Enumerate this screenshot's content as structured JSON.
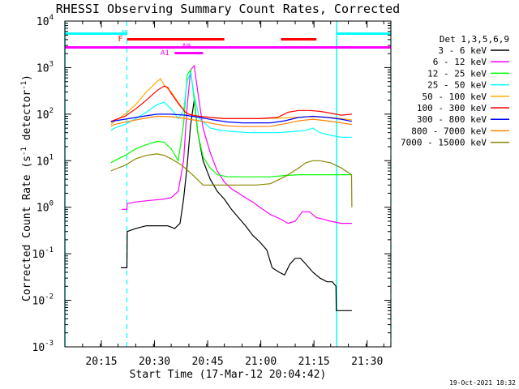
{
  "chart_data": {
    "type": "line",
    "title": "RHESSI Observing Summary Count Rates, Corrected",
    "xlabel": "Start Time (17-Mar-12 20:04:42)",
    "ylabel_main": "Corrected Count Rate (s",
    "ylabel_sup1": "-1",
    "ylabel_mid": " detector",
    "ylabel_sup2": "-1",
    "ylabel_end": ")",
    "x_unit": "minutes after 20:04:42",
    "xlim": [
      0,
      92
    ],
    "ylim": [
      0.001,
      10000
    ],
    "yscale": "log",
    "x_ticks": [
      {
        "x": 10.3,
        "label": "20:15"
      },
      {
        "x": 25.3,
        "label": "20:30"
      },
      {
        "x": 40.3,
        "label": "20:45"
      },
      {
        "x": 55.3,
        "label": "21:00"
      },
      {
        "x": 70.3,
        "label": "21:15"
      },
      {
        "x": 85.3,
        "label": "21:30"
      }
    ],
    "y_ticks": [
      {
        "v": 0.001,
        "base": "10",
        "exp": "-3"
      },
      {
        "v": 0.01,
        "base": "10",
        "exp": "-2"
      },
      {
        "v": 0.1,
        "base": "10",
        "exp": "-1"
      },
      {
        "v": 1,
        "base": "10",
        "exp": "0"
      },
      {
        "v": 10,
        "base": "10",
        "exp": "1"
      },
      {
        "v": 100,
        "base": "10",
        "exp": "2"
      },
      {
        "v": 1000,
        "base": "10",
        "exp": "3"
      },
      {
        "v": 10000,
        "base": "10",
        "exp": "4"
      }
    ],
    "legend_title": "Det 1,3,5,6,9",
    "legend_position": "right",
    "series": [
      {
        "name": "3 - 6 keV",
        "color": "#000000",
        "x": [
          15.8,
          17.5,
          17.6,
          20,
          23,
          26,
          29,
          31,
          32.5,
          33.5,
          34.5,
          35.5,
          36.5,
          37.5,
          39,
          41,
          43,
          45,
          47,
          49,
          51,
          53,
          55,
          57,
          58.5,
          60.5,
          62,
          63.5,
          65,
          66.5,
          68,
          70,
          72,
          74,
          75.5,
          76.5,
          76.6,
          77,
          81
        ],
        "y": [
          0.05,
          0.05,
          0.3,
          0.35,
          0.4,
          0.4,
          0.4,
          0.35,
          0.45,
          1.5,
          8,
          60,
          200,
          40,
          10,
          4,
          2.2,
          1.5,
          0.9,
          0.6,
          0.4,
          0.25,
          0.18,
          0.12,
          0.05,
          0.04,
          0.035,
          0.06,
          0.08,
          0.08,
          0.06,
          0.04,
          0.03,
          0.025,
          0.025,
          0.02,
          0.006,
          0.006,
          0.006
        ]
      },
      {
        "name": "6 - 12 keV",
        "color": "#ff00ff",
        "x": [
          16,
          17.5,
          17.6,
          20,
          24,
          28,
          30,
          32,
          33.5,
          34.5,
          35.5,
          36.5,
          37.5,
          39,
          41,
          43,
          45,
          47,
          49,
          51,
          53,
          55,
          58,
          61,
          63,
          65,
          67,
          69,
          71,
          73,
          75,
          78,
          81
        ],
        "y": [
          0.9,
          0.9,
          1.2,
          1.3,
          1.4,
          1.5,
          1.6,
          2.2,
          10,
          150,
          900,
          1100,
          300,
          50,
          15,
          6,
          3.5,
          2.5,
          2,
          1.6,
          1.3,
          1.0,
          0.7,
          0.55,
          0.45,
          0.5,
          0.8,
          0.8,
          0.6,
          0.55,
          0.5,
          0.45,
          0.45
        ]
      },
      {
        "name": "12 - 25 keV",
        "color": "#00ff00",
        "x": [
          13,
          14,
          17,
          20,
          23,
          26,
          28,
          30,
          32,
          33.5,
          34.5,
          35.5,
          36.5,
          37.5,
          39,
          41,
          43,
          46,
          50,
          54,
          58,
          62,
          66,
          69,
          72,
          75,
          78,
          81
        ],
        "y": [
          9,
          10,
          13,
          18,
          22,
          26,
          25,
          18,
          10,
          60,
          700,
          900,
          200,
          40,
          12,
          7,
          5,
          4.5,
          4.5,
          4.5,
          4.5,
          4.8,
          5,
          5,
          5,
          5,
          5,
          5
        ]
      },
      {
        "name": "25 - 50 keV",
        "color": "#00ffff",
        "x": [
          13,
          14,
          17,
          20,
          23,
          26,
          28,
          30,
          32,
          33.5,
          34.5,
          35.5,
          36.5,
          38,
          41,
          44,
          48,
          52,
          56,
          60,
          64,
          68,
          70,
          72,
          75,
          78,
          81
        ],
        "y": [
          45,
          50,
          60,
          80,
          110,
          160,
          180,
          130,
          80,
          120,
          500,
          800,
          250,
          80,
          50,
          45,
          42,
          40,
          40,
          40,
          42,
          45,
          50,
          40,
          35,
          32,
          32
        ]
      },
      {
        "name": "50 - 100 keV",
        "color": "#ffaa00",
        "x": [
          13,
          14,
          17,
          20,
          23,
          26,
          27,
          28,
          30,
          32,
          34,
          35,
          36,
          38,
          41,
          45,
          50,
          55,
          60,
          65,
          70,
          75,
          78,
          81
        ],
        "y": [
          60,
          70,
          100,
          160,
          300,
          500,
          580,
          420,
          300,
          180,
          110,
          100,
          95,
          90,
          85,
          80,
          80,
          80,
          82,
          85,
          88,
          85,
          80,
          75
        ]
      },
      {
        "name": "100 - 300 keV",
        "color": "#ff0000",
        "x": [
          13,
          14,
          17,
          20,
          23,
          26,
          28,
          29,
          30,
          32,
          34,
          35,
          36,
          38,
          41,
          45,
          50,
          55,
          60,
          63,
          66,
          69,
          72,
          75,
          78,
          81
        ],
        "y": [
          70,
          75,
          90,
          130,
          200,
          320,
          400,
          380,
          280,
          170,
          110,
          100,
          95,
          90,
          85,
          80,
          80,
          80,
          85,
          110,
          120,
          120,
          115,
          105,
          95,
          100
        ]
      },
      {
        "name": "300 - 800 keV",
        "color": "#0000ff",
        "x": [
          13,
          14,
          18,
          22,
          26,
          30,
          34,
          38,
          42,
          46,
          50,
          54,
          58,
          62,
          66,
          70,
          74,
          78,
          81
        ],
        "y": [
          68,
          72,
          80,
          90,
          100,
          100,
          95,
          85,
          75,
          68,
          65,
          65,
          65,
          72,
          85,
          90,
          85,
          78,
          70
        ]
      },
      {
        "name": "800 - 7000 keV",
        "color": "#ff8000",
        "x": [
          13,
          14,
          18,
          22,
          26,
          30,
          34,
          38,
          42,
          46,
          50,
          54,
          58,
          62,
          66,
          70,
          74,
          78,
          81
        ],
        "y": [
          55,
          60,
          70,
          80,
          90,
          88,
          80,
          72,
          62,
          56,
          54,
          54,
          55,
          62,
          72,
          78,
          72,
          65,
          60
        ]
      },
      {
        "name": "7000 - 15000 keV",
        "color": "#888800",
        "x": [
          13,
          14,
          17,
          20,
          23,
          26,
          28,
          30,
          33,
          36,
          39,
          42,
          46,
          50,
          54,
          58,
          62,
          66,
          68,
          70,
          72,
          75,
          78,
          80.9,
          81
        ],
        "y": [
          6,
          6.5,
          8,
          11,
          13,
          14,
          13,
          11,
          8,
          5,
          3,
          3,
          3,
          3,
          3,
          3.2,
          4.5,
          7,
          9,
          10,
          10,
          9,
          7,
          5,
          1
        ]
      }
    ],
    "annotations": {
      "flag_labels": {
        "n": "N",
        "f": "F",
        "a0": "A0",
        "a1": "A1"
      },
      "night_bars": [
        {
          "x0": 0,
          "x1": 17.5
        },
        {
          "x0": 76.7,
          "x1": 92
        }
      ],
      "saa_bars": [
        {
          "x0": 17.6,
          "x1": 45
        },
        {
          "x0": 61,
          "x1": 71
        }
      ],
      "attenuator_bar": {
        "x0": 0,
        "x1": 92
      },
      "a0_bar": {
        "x0": 32,
        "x1": 39
      },
      "a1_bar": {
        "x0": 31,
        "x1": 39
      },
      "dashed_lines": [
        17.5,
        92
      ],
      "solid_lines": [
        0,
        76.7
      ]
    },
    "footer": "19-Oct-2021 18:32"
  }
}
